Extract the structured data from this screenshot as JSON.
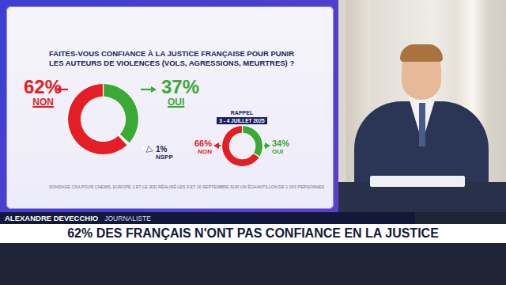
{
  "chart_data": [
    {
      "type": "donut",
      "title": "FAITES-VOUS CONFIANCE À LA JUSTICE FRANÇAISE POUR PUNIR LES AUTEURS DE VIOLENCES (VOLS, AGRESSIONS, MEURTRES) ?",
      "categories": [
        "OUI",
        "NSPP",
        "NON"
      ],
      "values": [
        37,
        1,
        62
      ],
      "value_labels": [
        "37%",
        "1%",
        "62%"
      ],
      "colors": [
        "#3aaa35",
        "#ffffff",
        "#e31e24"
      ],
      "data_labels": true,
      "source": "SONDAGE CSA POUR CNEWS, EUROPE 1 ET LE JDD RÉALISÉ LES 9 ET 10 SEPTEMBRE SUR UN ÉCHANTILLON DE 1 003 PERSONNES"
    },
    {
      "type": "donut",
      "title": "RAPPEL",
      "subtitle": "3 - 4 JUILLET 2025",
      "categories": [
        "OUI",
        "NON"
      ],
      "values": [
        34,
        66
      ],
      "value_labels": [
        "34%",
        "66%"
      ],
      "colors": [
        "#3aaa35",
        "#e31e24"
      ],
      "data_labels": true
    }
  ],
  "banner": {
    "name": "ALEXANDRE DEVECCHIO",
    "role": "JOURNALISTE",
    "headline": "62% DES FRANÇAIS N'ONT PAS CONFIANCE EN LA JUSTICE"
  }
}
